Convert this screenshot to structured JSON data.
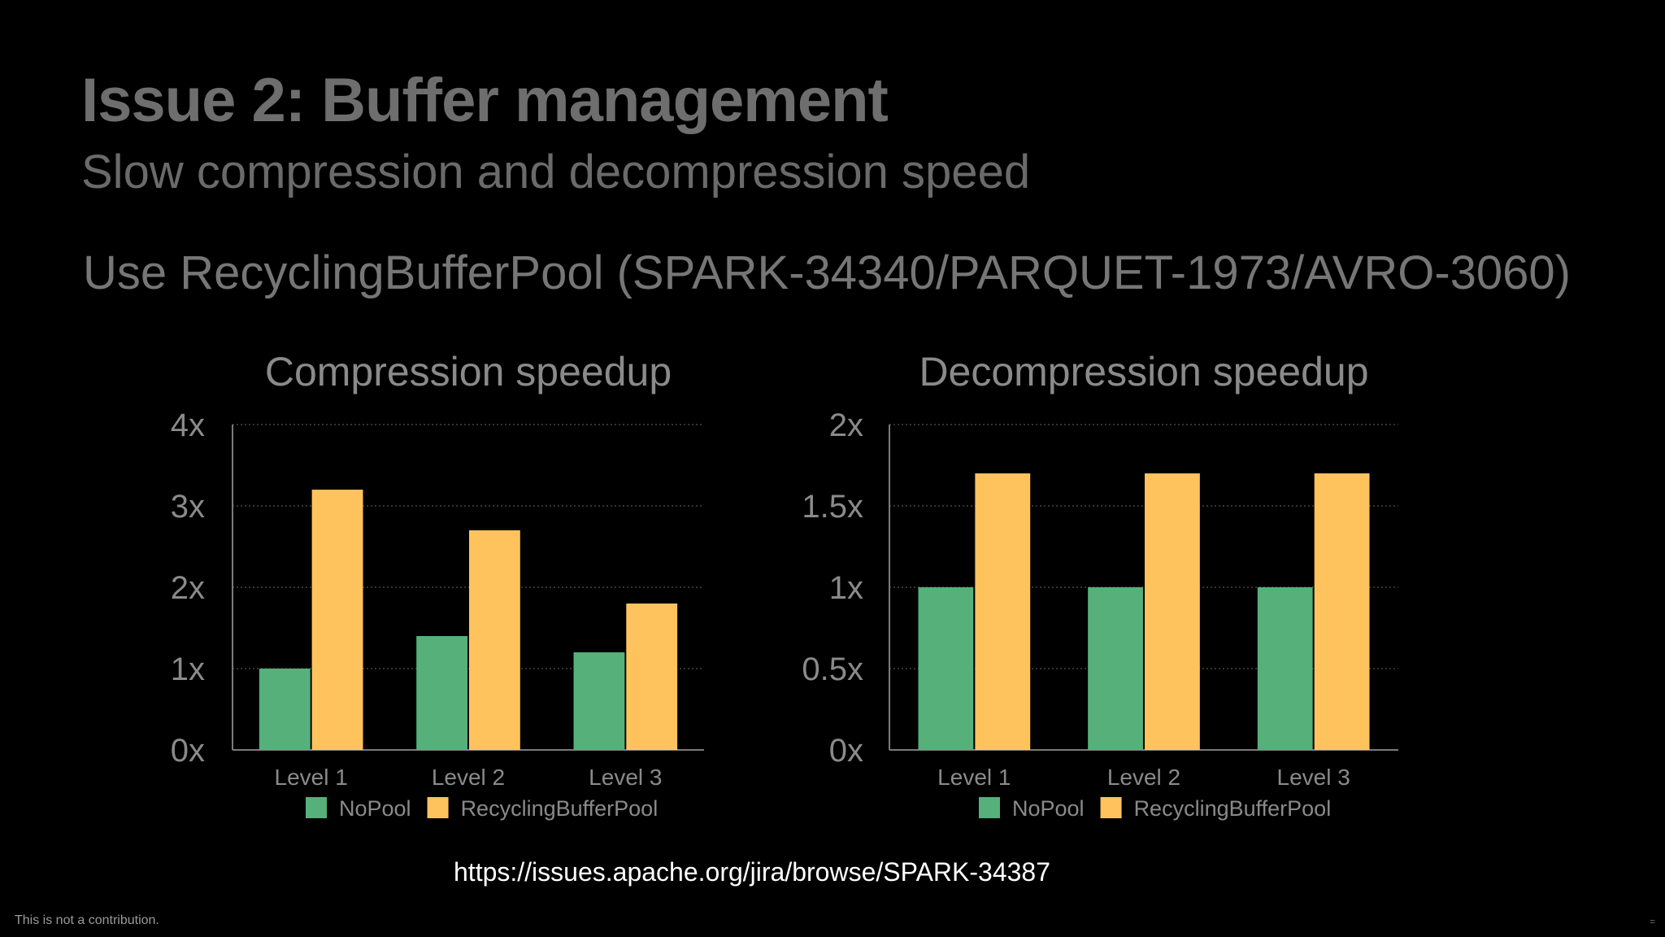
{
  "slide": {
    "title": "Issue 2: Buffer management",
    "subtitle": "Slow compression and decompression speed",
    "heading": "Use RecyclingBufferPool (SPARK-34340/PARQUET-1973/AVRO-3060)",
    "link": "https://issues.apache.org/jira/browse/SPARK-34387",
    "footer_note": "This is not a contribution.",
    "corner_mark": "="
  },
  "colors": {
    "nopool": "#55b07a",
    "recycling": "#ffc35e",
    "axis": "#7a7a7a",
    "grid": "#444444"
  },
  "chart_data": [
    {
      "type": "bar",
      "title": "Compression speedup",
      "categories": [
        "Level 1",
        "Level 2",
        "Level 3"
      ],
      "series": [
        {
          "name": "NoPool",
          "values": [
            1.0,
            1.4,
            1.2
          ]
        },
        {
          "name": "RecyclingBufferPool",
          "values": [
            3.2,
            2.7,
            1.8
          ]
        }
      ],
      "ylim": [
        0,
        4
      ],
      "yticks": [
        0,
        1,
        2,
        3,
        4
      ],
      "ytick_labels": [
        "0x",
        "1x",
        "2x",
        "3x",
        "4x"
      ],
      "grid": true,
      "legend": "bottom"
    },
    {
      "type": "bar",
      "title": "Decompression speedup",
      "categories": [
        "Level 1",
        "Level 2",
        "Level 3"
      ],
      "series": [
        {
          "name": "NoPool",
          "values": [
            1.0,
            1.0,
            1.0
          ]
        },
        {
          "name": "RecyclingBufferPool",
          "values": [
            1.7,
            1.7,
            1.7
          ]
        }
      ],
      "ylim": [
        0,
        2
      ],
      "yticks": [
        0,
        0.5,
        1,
        1.5,
        2
      ],
      "ytick_labels": [
        "0x",
        "0.5x",
        "1x",
        "1.5x",
        "2x"
      ],
      "grid": true,
      "legend": "bottom"
    }
  ]
}
